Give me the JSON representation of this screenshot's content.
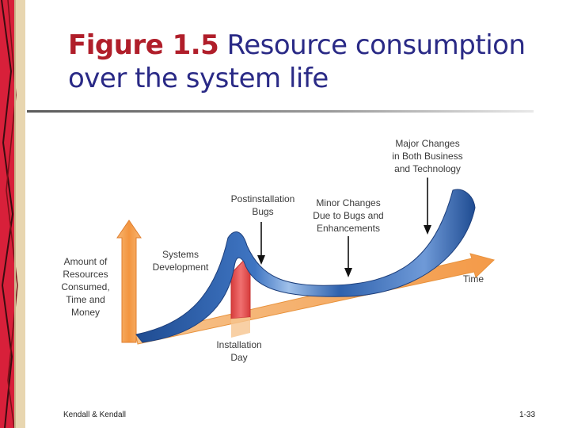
{
  "slide": {
    "title_figure": "Figure 1.5",
    "title_text": "Resource consumption over the system life",
    "footer_left": "Kendall & Kendall",
    "footer_right": "1-33"
  },
  "diagram": {
    "labels": {
      "y_axis": [
        "Amount of",
        "Resources",
        "Consumed,",
        "Time and",
        "Money"
      ],
      "systems_development": [
        "Systems",
        "Development"
      ],
      "postinstallation_bugs": [
        "Postinstallation",
        "Bugs"
      ],
      "minor_changes": [
        "Minor Changes",
        "Due to Bugs and",
        "Enhancements"
      ],
      "major_changes": [
        "Major Changes",
        "in Both Business",
        "and Technology"
      ],
      "time": "Time",
      "installation_day": [
        "Installation",
        "Day"
      ]
    },
    "colors": {
      "curve_blue": "#2f5fa8",
      "axis_orange": "#f4a35a",
      "install_red": "#e3504f",
      "title_blue": "#2a2a86",
      "title_red": "#b01e2a"
    }
  }
}
